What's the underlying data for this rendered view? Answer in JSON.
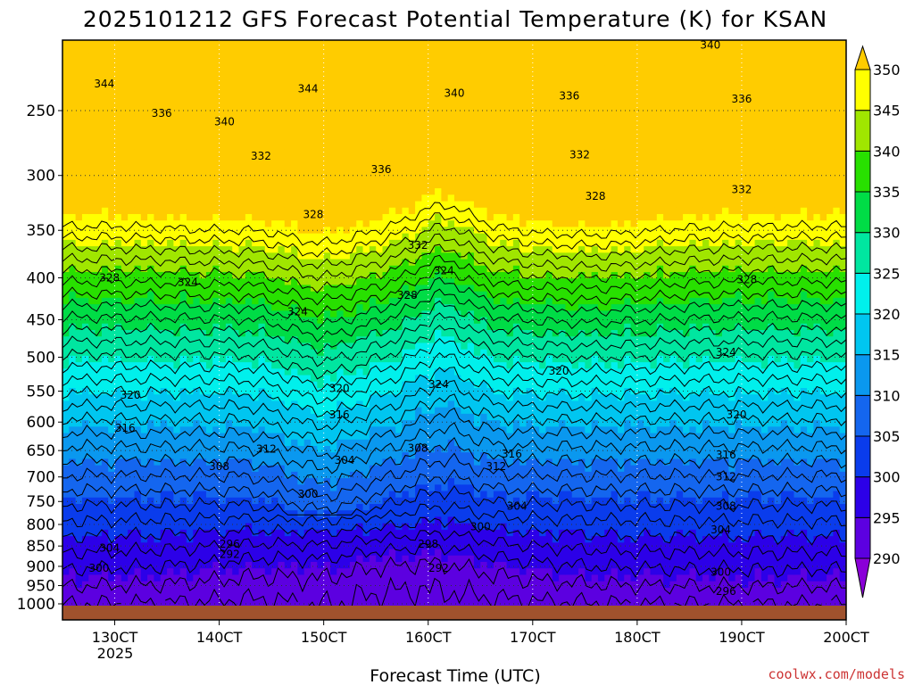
{
  "title": "2025101212 GFS Forecast Potential Temperature (K) for KSAN",
  "xlabel": "Forecast Time (UTC)",
  "credit": "coolwx.com/models",
  "colors": {
    "ground": "#a0522d",
    "credit": "#cc3333",
    "contour": "#000000",
    "grid": "#333333"
  },
  "chart_data": {
    "type": "heatmap",
    "title": "2025101212 GFS Forecast Potential Temperature (K) for KSAN",
    "xlabel": "Forecast Time (UTC)",
    "ylabel": "",
    "x_ticks": [
      {
        "label": "130CT",
        "day": 13
      },
      {
        "label": "140CT",
        "day": 14
      },
      {
        "label": "150CT",
        "day": 15
      },
      {
        "label": "160CT",
        "day": 16
      },
      {
        "label": "170CT",
        "day": 17
      },
      {
        "label": "180CT",
        "day": 18
      },
      {
        "label": "190CT",
        "day": 19
      },
      {
        "label": "200CT",
        "day": 20
      }
    ],
    "x_year_label": "2025",
    "xlim_days": [
      12.5,
      20.0
    ],
    "y_axis": "pressure (hPa), log scale, inverted",
    "y_ticks": [
      250,
      300,
      350,
      400,
      450,
      500,
      550,
      600,
      650,
      700,
      750,
      800,
      850,
      900,
      950,
      1000
    ],
    "ylim_hpa": [
      200,
      1020
    ],
    "grid": true,
    "colorbar": {
      "unit": "K",
      "ticks": [
        290,
        295,
        300,
        305,
        310,
        315,
        320,
        325,
        330,
        335,
        340,
        345,
        350
      ],
      "levels": [
        {
          "lo": 285,
          "hi": 290,
          "color": "#8a00d8"
        },
        {
          "lo": 290,
          "hi": 295,
          "color": "#5c00e0"
        },
        {
          "lo": 295,
          "hi": 300,
          "color": "#2c00e8"
        },
        {
          "lo": 300,
          "hi": 305,
          "color": "#0a3cec"
        },
        {
          "lo": 305,
          "hi": 310,
          "color": "#1466ef"
        },
        {
          "lo": 310,
          "hi": 315,
          "color": "#0a98ef"
        },
        {
          "lo": 315,
          "hi": 320,
          "color": "#00c6f0"
        },
        {
          "lo": 320,
          "hi": 325,
          "color": "#00f0ec"
        },
        {
          "lo": 325,
          "hi": 330,
          "color": "#00e6a0"
        },
        {
          "lo": 330,
          "hi": 335,
          "color": "#00dc46"
        },
        {
          "lo": 335,
          "hi": 340,
          "color": "#28e000"
        },
        {
          "lo": 340,
          "hi": 345,
          "color": "#a0e600"
        },
        {
          "lo": 345,
          "hi": 350,
          "color": "#ffff00"
        },
        {
          "lo": 350,
          "hi": 355,
          "color": "#ffcc00"
        }
      ]
    },
    "contour_interval": 2,
    "contour_labels": [
      {
        "value": "344",
        "day": 12.9,
        "p": 232
      },
      {
        "value": "344",
        "day": 14.85,
        "p": 235
      },
      {
        "value": "340",
        "day": 16.25,
        "p": 238
      },
      {
        "value": "340",
        "day": 18.7,
        "p": 208
      },
      {
        "value": "336",
        "day": 13.45,
        "p": 252
      },
      {
        "value": "340",
        "day": 14.05,
        "p": 258
      },
      {
        "value": "336",
        "day": 17.35,
        "p": 240
      },
      {
        "value": "336",
        "day": 19.0,
        "p": 242
      },
      {
        "value": "332",
        "day": 14.4,
        "p": 284
      },
      {
        "value": "336",
        "day": 15.55,
        "p": 295
      },
      {
        "value": "332",
        "day": 17.45,
        "p": 283
      },
      {
        "value": "328",
        "day": 17.6,
        "p": 318
      },
      {
        "value": "332",
        "day": 19.0,
        "p": 312
      },
      {
        "value": "328",
        "day": 14.9,
        "p": 335
      },
      {
        "value": "332",
        "day": 15.9,
        "p": 365
      },
      {
        "value": "328",
        "day": 12.95,
        "p": 400
      },
      {
        "value": "324",
        "day": 13.7,
        "p": 405
      },
      {
        "value": "324",
        "day": 16.15,
        "p": 392
      },
      {
        "value": "328",
        "day": 15.8,
        "p": 420
      },
      {
        "value": "328",
        "day": 19.05,
        "p": 402
      },
      {
        "value": "324",
        "day": 14.75,
        "p": 440
      },
      {
        "value": "324",
        "day": 18.85,
        "p": 493
      },
      {
        "value": "320",
        "day": 17.25,
        "p": 520
      },
      {
        "value": "324",
        "day": 16.1,
        "p": 540
      },
      {
        "value": "320",
        "day": 15.15,
        "p": 546
      },
      {
        "value": "320",
        "day": 13.15,
        "p": 556
      },
      {
        "value": "316",
        "day": 15.15,
        "p": 588
      },
      {
        "value": "320",
        "day": 18.95,
        "p": 588
      },
      {
        "value": "316",
        "day": 13.1,
        "p": 610
      },
      {
        "value": "312",
        "day": 14.45,
        "p": 647
      },
      {
        "value": "308",
        "day": 15.9,
        "p": 646
      },
      {
        "value": "316",
        "day": 16.8,
        "p": 656
      },
      {
        "value": "316",
        "day": 18.85,
        "p": 658
      },
      {
        "value": "304",
        "day": 15.2,
        "p": 668
      },
      {
        "value": "308",
        "day": 14.0,
        "p": 680
      },
      {
        "value": "312",
        "day": 16.65,
        "p": 680
      },
      {
        "value": "312",
        "day": 18.85,
        "p": 700
      },
      {
        "value": "300",
        "day": 14.85,
        "p": 735
      },
      {
        "value": "304",
        "day": 16.85,
        "p": 760
      },
      {
        "value": "308",
        "day": 18.85,
        "p": 760
      },
      {
        "value": "300",
        "day": 16.5,
        "p": 805
      },
      {
        "value": "304",
        "day": 18.8,
        "p": 812
      },
      {
        "value": "296",
        "day": 14.1,
        "p": 845
      },
      {
        "value": "298",
        "day": 16.0,
        "p": 845
      },
      {
        "value": "304",
        "day": 12.95,
        "p": 855
      },
      {
        "value": "292",
        "day": 14.1,
        "p": 870
      },
      {
        "value": "300",
        "day": 12.85,
        "p": 905
      },
      {
        "value": "292",
        "day": 16.1,
        "p": 905
      },
      {
        "value": "300",
        "day": 18.8,
        "p": 915
      },
      {
        "value": "296",
        "day": 18.85,
        "p": 965
      }
    ]
  }
}
